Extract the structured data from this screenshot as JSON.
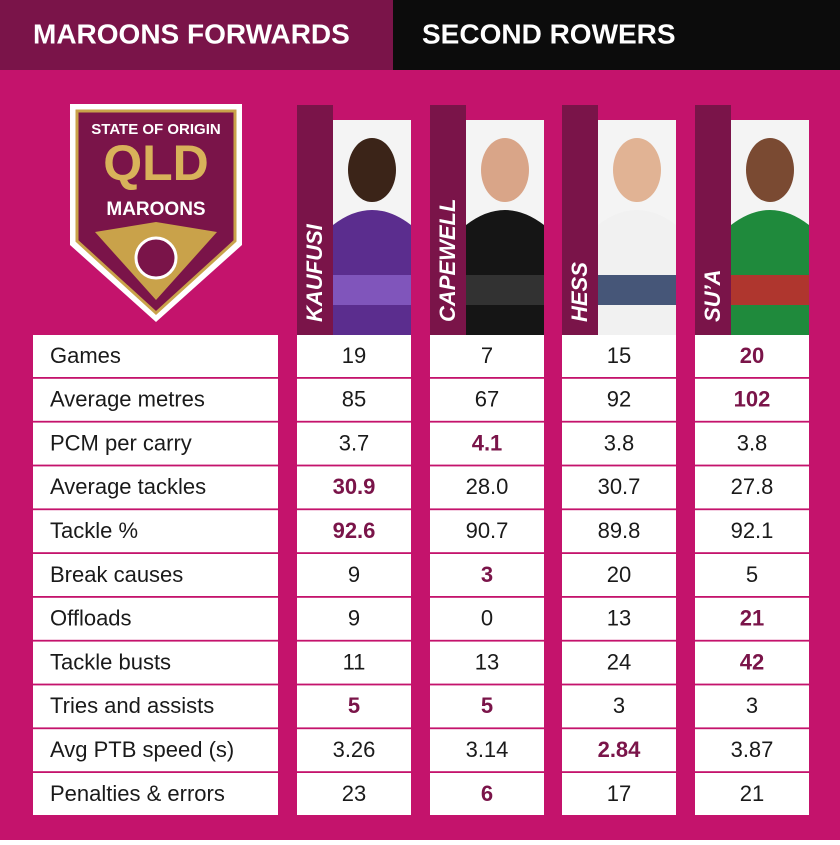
{
  "header": {
    "left": "MAROONS FORWARDS",
    "right": "SECOND ROWERS"
  },
  "logo": {
    "top": "STATE OF ORIGIN",
    "main": "QLD",
    "bottom": "MAROONS"
  },
  "players": [
    "KAUFUSI",
    "CAPEWELL",
    "HESS",
    "SU’A"
  ],
  "table": {
    "rows": [
      {
        "label": "Games",
        "values": [
          "19",
          "7",
          "15",
          "20"
        ],
        "best": [
          3
        ]
      },
      {
        "label": "Average metres",
        "values": [
          "85",
          "67",
          "92",
          "102"
        ],
        "best": [
          3
        ]
      },
      {
        "label": "PCM per carry",
        "values": [
          "3.7",
          "4.1",
          "3.8",
          "3.8"
        ],
        "best": [
          1
        ]
      },
      {
        "label": "Average tackles",
        "values": [
          "30.9",
          "28.0",
          "30.7",
          "27.8"
        ],
        "best": [
          0
        ]
      },
      {
        "label": "Tackle %",
        "values": [
          "92.6",
          "90.7",
          "89.8",
          "92.1"
        ],
        "best": [
          0
        ]
      },
      {
        "label": "Break causes",
        "values": [
          "9",
          "3",
          "20",
          "5"
        ],
        "best": [
          1
        ]
      },
      {
        "label": "Offloads",
        "values": [
          "9",
          "0",
          "13",
          "21"
        ],
        "best": [
          3
        ]
      },
      {
        "label": "Tackle busts",
        "values": [
          "11",
          "13",
          "24",
          "42"
        ],
        "best": [
          3
        ]
      },
      {
        "label": "Tries and assists",
        "values": [
          "5",
          "5",
          "3",
          "3"
        ],
        "best": [
          0,
          1
        ]
      },
      {
        "label": "Avg PTB speed (s)",
        "values": [
          "3.26",
          "3.14",
          "2.84",
          "3.87"
        ],
        "best": [
          2
        ]
      },
      {
        "label": "Penalties & errors",
        "values": [
          "23",
          "6",
          "17",
          "21"
        ],
        "best": [
          1
        ]
      }
    ]
  }
}
